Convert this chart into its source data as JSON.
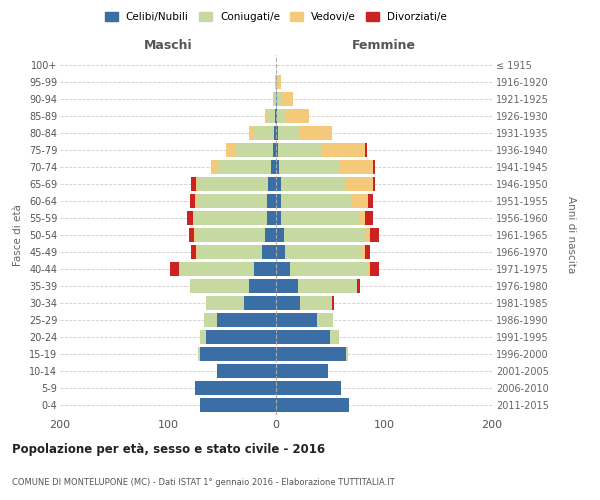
{
  "age_groups": [
    "0-4",
    "5-9",
    "10-14",
    "15-19",
    "20-24",
    "25-29",
    "30-34",
    "35-39",
    "40-44",
    "45-49",
    "50-54",
    "55-59",
    "60-64",
    "65-69",
    "70-74",
    "75-79",
    "80-84",
    "85-89",
    "90-94",
    "95-99",
    "100+"
  ],
  "birth_years": [
    "2011-2015",
    "2006-2010",
    "2001-2005",
    "1996-2000",
    "1991-1995",
    "1986-1990",
    "1981-1985",
    "1976-1980",
    "1971-1975",
    "1966-1970",
    "1961-1965",
    "1956-1960",
    "1951-1955",
    "1946-1950",
    "1941-1945",
    "1936-1940",
    "1931-1935",
    "1926-1930",
    "1921-1925",
    "1916-1920",
    "≤ 1915"
  ],
  "colors": {
    "celibe": "#3a6ea5",
    "coniugato": "#c5d9a0",
    "vedovo": "#f5c97a",
    "divorziato": "#cc2222"
  },
  "maschi": {
    "celibe": [
      70,
      75,
      55,
      70,
      65,
      55,
      30,
      25,
      20,
      13,
      10,
      8,
      8,
      7,
      5,
      3,
      2,
      1,
      0,
      0,
      0
    ],
    "coniugato": [
      0,
      0,
      0,
      2,
      5,
      12,
      35,
      55,
      70,
      60,
      65,
      68,
      65,
      65,
      50,
      35,
      18,
      6,
      2,
      1,
      0
    ],
    "vedovo": [
      0,
      0,
      0,
      0,
      0,
      0,
      0,
      0,
      0,
      1,
      1,
      1,
      2,
      2,
      5,
      8,
      5,
      3,
      1,
      0,
      0
    ],
    "divorziato": [
      0,
      0,
      0,
      0,
      0,
      0,
      0,
      0,
      8,
      5,
      5,
      5,
      5,
      5,
      0,
      0,
      0,
      0,
      0,
      0,
      0
    ]
  },
  "femmine": {
    "nubile": [
      68,
      60,
      48,
      65,
      50,
      38,
      22,
      20,
      13,
      8,
      7,
      5,
      5,
      5,
      3,
      2,
      2,
      1,
      1,
      0,
      0
    ],
    "coniugata": [
      0,
      0,
      0,
      2,
      8,
      15,
      30,
      55,
      72,
      72,
      75,
      72,
      65,
      60,
      55,
      40,
      20,
      8,
      5,
      2,
      0
    ],
    "vedova": [
      0,
      0,
      0,
      0,
      0,
      0,
      0,
      0,
      2,
      2,
      5,
      5,
      15,
      25,
      32,
      40,
      30,
      22,
      10,
      3,
      0
    ],
    "divorziata": [
      0,
      0,
      0,
      0,
      0,
      0,
      2,
      3,
      8,
      5,
      8,
      8,
      5,
      2,
      2,
      2,
      0,
      0,
      0,
      0,
      0
    ]
  },
  "title": "Popolazione per età, sesso e stato civile - 2016",
  "subtitle": "COMUNE DI MONTELUPONE (MC) - Dati ISTAT 1° gennaio 2016 - Elaborazione TUTTITALIA.IT",
  "xlabel_left": "Maschi",
  "xlabel_right": "Femmine",
  "ylabel_left": "Fasce di età",
  "ylabel_right": "Anni di nascita",
  "xlim": 200,
  "legend_labels": [
    "Celibi/Nubili",
    "Coniugati/e",
    "Vedovi/e",
    "Divorziati/e"
  ]
}
